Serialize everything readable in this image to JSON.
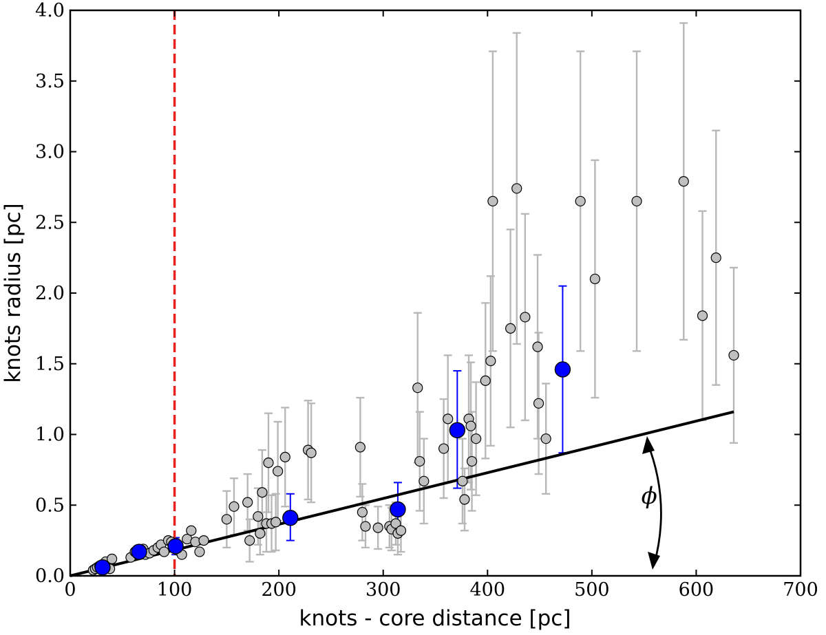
{
  "chart_data": {
    "type": "scatter",
    "title": "",
    "xlabel": "knots - core distance [pc]",
    "ylabel": "knots radius [pc]",
    "xlim": [
      0,
      700
    ],
    "ylim": [
      0,
      4.0
    ],
    "xticks": [
      0,
      100,
      200,
      300,
      400,
      500,
      600,
      700
    ],
    "yticks": [
      0.0,
      0.5,
      1.0,
      1.5,
      2.0,
      2.5,
      3.0,
      3.5,
      4.0
    ],
    "xtick_labels": [
      "0",
      "100",
      "200",
      "300",
      "400",
      "500",
      "600",
      "700"
    ],
    "ytick_labels": [
      "0.0",
      "0.5",
      "1.0",
      "1.5",
      "2.0",
      "2.5",
      "3.0",
      "3.5",
      "4.0"
    ],
    "grid": false,
    "legend": "none",
    "colors": {
      "individual_points": "#c0c0c0",
      "individual_errorbars": "#b8b8b8",
      "binned_points": "#0000ff",
      "binned_errorbars": "#0000ff",
      "reference_line": "#e8211f",
      "fit_line": "#000000"
    },
    "series": [
      {
        "kind": "individual_knots",
        "points": [
          {
            "x": 22,
            "y": 0.04
          },
          {
            "x": 24,
            "y": 0.05
          },
          {
            "x": 26,
            "y": 0.06
          },
          {
            "x": 28,
            "y": 0.07
          },
          {
            "x": 30,
            "y": 0.05
          },
          {
            "x": 32,
            "y": 0.08
          },
          {
            "x": 34,
            "y": 0.1
          },
          {
            "x": 36,
            "y": 0.06
          },
          {
            "x": 38,
            "y": 0.05
          },
          {
            "x": 40,
            "y": 0.12
          },
          {
            "x": 58,
            "y": 0.13
          },
          {
            "x": 62,
            "y": 0.17
          },
          {
            "x": 66,
            "y": 0.16
          },
          {
            "x": 70,
            "y": 0.19
          },
          {
            "x": 72,
            "y": 0.15
          },
          {
            "x": 76,
            "y": 0.16
          },
          {
            "x": 80,
            "y": 0.18
          },
          {
            "x": 84,
            "y": 0.2
          },
          {
            "x": 87,
            "y": 0.22
          },
          {
            "x": 90,
            "y": 0.17
          },
          {
            "x": 94,
            "y": 0.25
          },
          {
            "x": 97,
            "y": 0.24
          },
          {
            "x": 103,
            "y": 0.18
          },
          {
            "x": 107,
            "y": 0.15
          },
          {
            "x": 112,
            "y": 0.26
          },
          {
            "x": 116,
            "y": 0.32
          },
          {
            "x": 120,
            "y": 0.24
          },
          {
            "x": 124,
            "y": 0.17
          },
          {
            "x": 128,
            "y": 0.25
          },
          {
            "x": 150,
            "y": 0.4,
            "err": [
              0.2,
              0.2
            ]
          },
          {
            "x": 157,
            "y": 0.49,
            "err": [
              0.2,
              0.2
            ]
          },
          {
            "x": 170,
            "y": 0.52,
            "err": [
              0.2,
              0.2
            ]
          },
          {
            "x": 172,
            "y": 0.25,
            "err": [
              0.15,
              0.15
            ]
          },
          {
            "x": 180,
            "y": 0.42,
            "err": [
              0.2,
              0.2
            ]
          },
          {
            "x": 182,
            "y": 0.3,
            "err": [
              0.15,
              0.15
            ]
          },
          {
            "x": 184,
            "y": 0.59,
            "err": [
              0.3,
              0.3
            ]
          },
          {
            "x": 188,
            "y": 0.37,
            "err": [
              0.2,
              0.2
            ]
          },
          {
            "x": 190,
            "y": 0.8,
            "err": [
              0.35,
              0.35
            ]
          },
          {
            "x": 193,
            "y": 0.37,
            "err": [
              0.2,
              0.2
            ]
          },
          {
            "x": 197,
            "y": 0.38,
            "err": [
              0.2,
              0.2
            ]
          },
          {
            "x": 199,
            "y": 0.74,
            "err": [
              0.35,
              0.35
            ]
          },
          {
            "x": 206,
            "y": 0.84,
            "err": [
              0.35,
              0.35
            ]
          },
          {
            "x": 228,
            "y": 0.89,
            "err": [
              0.35,
              0.35
            ]
          },
          {
            "x": 231,
            "y": 0.87,
            "err": [
              0.35,
              0.35
            ]
          },
          {
            "x": 278,
            "y": 0.91,
            "err": [
              0.35,
              0.35
            ]
          },
          {
            "x": 280,
            "y": 0.45,
            "err": [
              0.2,
              0.2
            ]
          },
          {
            "x": 283,
            "y": 0.35,
            "err": [
              0.15,
              0.15
            ]
          },
          {
            "x": 295,
            "y": 0.34,
            "err": [
              0.15,
              0.15
            ]
          },
          {
            "x": 306,
            "y": 0.35,
            "err": [
              0.15,
              0.15
            ]
          },
          {
            "x": 308,
            "y": 0.33,
            "err": [
              0.15,
              0.15
            ]
          },
          {
            "x": 312,
            "y": 0.37,
            "err": [
              0.15,
              0.15
            ]
          },
          {
            "x": 314,
            "y": 0.3,
            "err": [
              0.15,
              0.15
            ]
          },
          {
            "x": 317,
            "y": 0.32,
            "err": [
              0.15,
              0.15
            ]
          },
          {
            "x": 333,
            "y": 1.33,
            "err": [
              0.53,
              0.53
            ]
          },
          {
            "x": 335,
            "y": 0.81,
            "err": [
              0.35,
              0.35
            ]
          },
          {
            "x": 339,
            "y": 0.67,
            "err": [
              0.3,
              0.3
            ]
          },
          {
            "x": 358,
            "y": 0.9,
            "err": [
              0.35,
              0.35
            ]
          },
          {
            "x": 362,
            "y": 1.11,
            "err": [
              0.45,
              0.45
            ]
          },
          {
            "x": 376,
            "y": 0.67,
            "err": [
              0.3,
              0.3
            ]
          },
          {
            "x": 378,
            "y": 0.54,
            "err": [
              0.22,
              0.22
            ]
          },
          {
            "x": 382,
            "y": 1.11,
            "err": [
              0.45,
              0.45
            ]
          },
          {
            "x": 384,
            "y": 1.06,
            "err": [
              0.45,
              0.45
            ]
          },
          {
            "x": 385,
            "y": 0.81,
            "err": [
              0.35,
              0.35
            ]
          },
          {
            "x": 389,
            "y": 0.97,
            "err": [
              0.4,
              0.4
            ]
          },
          {
            "x": 398,
            "y": 1.38,
            "err": [
              0.55,
              0.55
            ]
          },
          {
            "x": 403,
            "y": 1.52,
            "err": [
              0.6,
              0.6
            ]
          },
          {
            "x": 405,
            "y": 2.65,
            "err": [
              1.06,
              1.06
            ]
          },
          {
            "x": 422,
            "y": 1.75,
            "err": [
              0.7,
              0.7
            ]
          },
          {
            "x": 428,
            "y": 2.74,
            "err": [
              1.1,
              1.1
            ]
          },
          {
            "x": 436,
            "y": 1.83,
            "err": [
              0.73,
              0.73
            ]
          },
          {
            "x": 448,
            "y": 1.62,
            "err": [
              0.65,
              0.65
            ]
          },
          {
            "x": 449,
            "y": 1.22,
            "err": [
              0.5,
              0.5
            ]
          },
          {
            "x": 456,
            "y": 0.97,
            "err": [
              0.39,
              0.39
            ]
          },
          {
            "x": 489,
            "y": 2.65,
            "err": [
              1.06,
              1.06
            ]
          },
          {
            "x": 503,
            "y": 2.1,
            "err": [
              0.84,
              0.84
            ]
          },
          {
            "x": 543,
            "y": 2.65,
            "err": [
              1.06,
              1.06
            ]
          },
          {
            "x": 588,
            "y": 2.79,
            "err": [
              1.12,
              1.12
            ]
          },
          {
            "x": 606,
            "y": 1.84,
            "err": [
              0.74,
              0.74
            ]
          },
          {
            "x": 619,
            "y": 2.25,
            "err": [
              0.9,
              0.9
            ]
          },
          {
            "x": 636,
            "y": 1.56,
            "err": [
              0.62,
              0.62
            ]
          }
        ]
      },
      {
        "kind": "binned_means",
        "points": [
          {
            "x": 31,
            "y": 0.06,
            "err": [
              0.02,
              0.02
            ]
          },
          {
            "x": 66,
            "y": 0.17,
            "err": [
              0.03,
              0.03
            ]
          },
          {
            "x": 101,
            "y": 0.21,
            "err": [
              0.06,
              0.06
            ]
          },
          {
            "x": 211,
            "y": 0.41,
            "err": [
              0.16,
              0.17
            ]
          },
          {
            "x": 314,
            "y": 0.47,
            "err": [
              0.19,
              0.19
            ]
          },
          {
            "x": 371,
            "y": 1.03,
            "err": [
              0.41,
              0.42
            ]
          },
          {
            "x": 472,
            "y": 1.46,
            "err": [
              0.59,
              0.59
            ]
          }
        ]
      }
    ],
    "reference_line": {
      "x": 100
    },
    "fit_line": {
      "x": [
        0,
        636
      ],
      "y": [
        0,
        1.16
      ]
    },
    "annotations": [
      {
        "text": "ϕ",
        "x": 555,
        "y": 0.51
      }
    ]
  }
}
